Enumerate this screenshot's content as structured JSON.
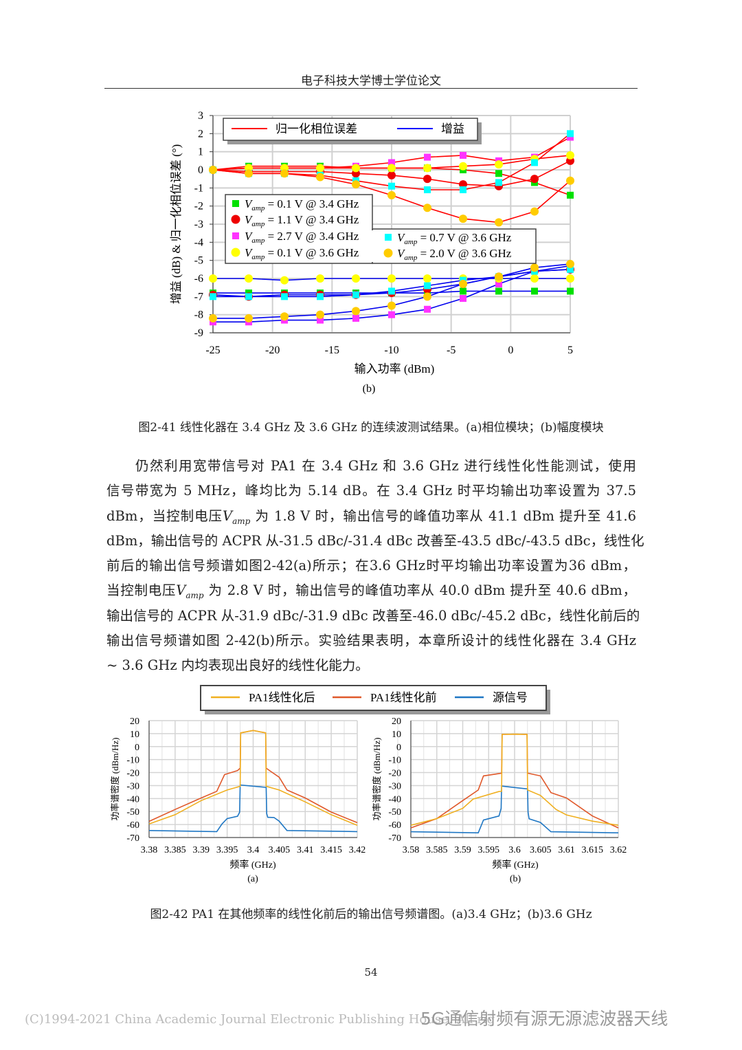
{
  "header": {
    "title": "电子科技大学博士学位论文"
  },
  "figure_2_41": {
    "sublabel": "(b)",
    "caption": "图2-41  线性化器在 3.4 GHz 及 3.6 GHz 的连续波测试结果。(a)相位模块；(b)幅度模块"
  },
  "paragraph": {
    "lines": [
      [
        {
          "t": "仍然利用宽带信号对 PA1 在 3.4 GHz 和 3.6 GHz 进行线性化性能测试，使用"
        }
      ],
      [
        {
          "t": "信号带宽为 5 MHz，峰均比为 5.14 dB。在 3.4 GHz 时平均输出功率设置为 37.5"
        }
      ],
      [
        {
          "t": "dBm，当控制电压"
        },
        {
          "t": "V",
          "i": true
        },
        {
          "t": "amp",
          "sub": true
        },
        {
          "t": " 为 1.8 V 时，输出信号的峰值功率从 41.1 dBm 提升至 41.6"
        }
      ],
      [
        {
          "t": "dBm，输出信号的 ACPR 从-31.5 dBc/-31.4 dBc 改善至-43.5 dBc/-43.5 dBc，线性化"
        }
      ],
      [
        {
          "t": "前后的输出信号频谱如图2-42(a)所示；在3.6 GHz时平均输出功率设置为36 dBm，"
        }
      ],
      [
        {
          "t": "当控制电压"
        },
        {
          "t": "V",
          "i": true
        },
        {
          "t": "amp",
          "sub": true
        },
        {
          "t": " 为 2.8 V 时，输出信号的峰值功率从 40.0 dBm 提升至 40.6 dBm，"
        }
      ],
      [
        {
          "t": "输出信号的 ACPR 从-31.9 dBc/-31.9 dBc 改善至-46.0 dBc/-45.2 dBc，线性化前后的"
        }
      ],
      [
        {
          "t": "输出信号频谱如图 2-42(b)所示。实验结果表明，本章所设计的线性化器在 3.4 GHz"
        }
      ],
      [
        {
          "t": "~ 3.6 GHz 内均表现出良好的线性化能力。"
        }
      ]
    ]
  },
  "figure_2_42": {
    "caption": "图2-42  PA1 在其他频率的线性化前后的输出信号频谱图。(a)3.4 GHz；(b)3.6 GHz"
  },
  "page_number": "54",
  "footer": {
    "copyright": "(C)1994-2021 China Academic Journal Electronic Publishing House. All rig",
    "watermark": "5G通信射频有源无源滤波器天线"
  },
  "chart_data": [
    {
      "type": "line",
      "title": "",
      "xlabel": "输入功率 (dBm)",
      "ylabel": "增益 (dB) & 归一化相位误差 (°)",
      "xlim": [
        -25,
        5
      ],
      "ylim": [
        -9,
        3
      ],
      "xticks": [
        "-25",
        "-20",
        "-15",
        "-10",
        "-5",
        "0",
        "5"
      ],
      "yticks": [
        "3",
        "2",
        "1",
        "0",
        "-1",
        "-2",
        "-3",
        "-4",
        "-5",
        "-6",
        "-7",
        "-8",
        "-9"
      ],
      "line_legend": [
        {
          "name": "归一化相位误差",
          "color": "#ff0000"
        },
        {
          "name": "增益",
          "color": "#0000ff"
        }
      ],
      "x": [
        -25,
        -22,
        -19,
        -16,
        -13,
        -10,
        -7,
        -4,
        -1,
        2,
        5
      ],
      "series": [
        {
          "name": "V_amp = 0.1 V @ 3.4 GHz",
          "label_v": "V",
          "label_sub": "amp",
          "label_rest": " = 0.1 V @ 3.4 GHz",
          "marker": "square",
          "color": "#00e000",
          "phase": [
            0,
            0.2,
            0.2,
            0.2,
            0.1,
            0.1,
            0.1,
            0,
            -0.2,
            -0.7,
            -1.4
          ],
          "gain": [
            -6.8,
            -6.8,
            -6.8,
            -6.8,
            -6.8,
            -6.8,
            -6.8,
            -6.7,
            -6.7,
            -6.7,
            -6.7
          ]
        },
        {
          "name": "V_amp = 1.1 V @ 3.4 GHz",
          "label_v": "V",
          "label_sub": "amp",
          "label_rest": " = 1.1 V @ 3.4 GHz",
          "marker": "circle",
          "color": "#ee0000",
          "phase": [
            0,
            -0.1,
            -0.1,
            -0.1,
            -0.2,
            -0.3,
            -0.5,
            -0.8,
            -0.9,
            -0.5,
            0.5
          ],
          "gain": [
            -6.9,
            -7,
            -6.9,
            -6.9,
            -6.9,
            -6.8,
            -6.6,
            -6.3,
            -5.9,
            -5.6,
            -5.5
          ]
        },
        {
          "name": "V_amp = 2.7 V @ 3.4 GHz",
          "label_v": "V",
          "label_sub": "amp",
          "label_rest": " = 2.7 V @ 3.4 GHz",
          "marker": "square",
          "color": "#ff33ff",
          "phase": [
            0,
            0.1,
            0.1,
            0.1,
            0.2,
            0.4,
            0.7,
            0.8,
            0.5,
            0.7,
            1.8
          ],
          "gain": [
            -8.4,
            -8.4,
            -8.3,
            -8.3,
            -8.2,
            -8,
            -7.7,
            -7.1,
            -6.3,
            -5.6,
            -5.3
          ]
        },
        {
          "name": "V_amp = 0.1 V @ 3.6 GHz",
          "label_v": "V",
          "label_sub": "amp",
          "label_rest": " = 0.1 V @ 3.6 GHz",
          "marker": "circle",
          "color": "#ffff00",
          "phase": [
            0,
            0.1,
            0.1,
            0.1,
            0.1,
            0.1,
            0.1,
            0.2,
            0.3,
            0.6,
            0.8
          ],
          "gain": [
            -6,
            -6,
            -6.1,
            -6,
            -6,
            -6,
            -6,
            -6,
            -6,
            -6,
            -6
          ]
        },
        {
          "name": "V_amp = 0.7 V @ 3.6 GHz",
          "label_v": "V",
          "label_sub": "amp",
          "label_rest": " = 0.7 V @ 3.6 GHz",
          "marker": "square",
          "color": "#00ffff",
          "phase": [
            0,
            -0.2,
            -0.2,
            -0.3,
            -0.6,
            -0.9,
            -1.1,
            -1.1,
            -0.7,
            0.4,
            2.0
          ],
          "gain": [
            -7,
            -7,
            -7,
            -7,
            -6.9,
            -6.7,
            -6.4,
            -6.1,
            -5.9,
            -5.6,
            -5.5
          ]
        },
        {
          "name": "V_amp = 2.0 V @ 3.6 GHz",
          "label_v": "V",
          "label_sub": "amp",
          "label_rest": " = 2.0 V @ 3.6 GHz",
          "marker": "circle",
          "color": "#ffcc00",
          "phase": [
            0,
            -0.2,
            -0.2,
            -0.4,
            -0.8,
            -1.4,
            -2.1,
            -2.7,
            -2.9,
            -2.3,
            -0.6
          ],
          "gain": [
            -8.2,
            -8.2,
            -8.1,
            -8,
            -7.8,
            -7.5,
            -7,
            -6.3,
            -5.9,
            -5.4,
            -5.2
          ]
        }
      ]
    },
    {
      "type": "line",
      "sublabel": "(a)",
      "xlabel": "频率 (GHz)",
      "ylabel": "功率谱密度 (dBm/Hz)",
      "xlim": [
        3.38,
        3.42
      ],
      "ylim": [
        -70,
        20
      ],
      "xticks": [
        "3.38",
        "3.385",
        "3.39",
        "3.395",
        "3.4",
        "3.405",
        "3.41",
        "3.415",
        "3.42"
      ],
      "yticks": [
        "20",
        "10",
        "0",
        "-10",
        "-20",
        "-30",
        "-40",
        "-50",
        "-60",
        "-70"
      ],
      "series": [
        {
          "name": "源信号",
          "color": "#1f77c4",
          "x": [
            3.38,
            3.393,
            3.394,
            3.395,
            3.397,
            3.3974,
            3.3975,
            3.4025,
            3.4026,
            3.4028,
            3.404,
            3.405,
            3.4065,
            3.42
          ],
          "y": [
            -65,
            -65,
            -60,
            -55,
            -54,
            -50,
            -30,
            -31,
            -52,
            -54,
            -55,
            -57,
            -65,
            -65
          ]
        },
        {
          "name": "PA1线性化前",
          "color": "#e0582a",
          "x": [
            3.38,
            3.385,
            3.39,
            3.393,
            3.3945,
            3.397,
            3.3975,
            3.3976,
            3.4,
            3.4024,
            3.4025,
            3.4035,
            3.405,
            3.4065,
            3.41,
            3.415,
            3.42
          ],
          "y": [
            -58,
            -48,
            -40,
            -34,
            -22,
            -18,
            -17,
            11,
            12,
            11,
            -17,
            -19,
            -24,
            -33,
            -40,
            -50,
            -59
          ]
        },
        {
          "name": "PA1线性化后",
          "color": "#f0b020",
          "x": [
            3.38,
            3.385,
            3.39,
            3.395,
            3.3975,
            3.3976,
            3.4,
            3.4024,
            3.4025,
            3.405,
            3.41,
            3.415,
            3.42
          ],
          "y": [
            -60,
            -52,
            -42,
            -33,
            -31,
            11,
            12,
            11,
            -31,
            -33,
            -43,
            -52,
            -61
          ]
        }
      ]
    },
    {
      "type": "line",
      "sublabel": "(b)",
      "xlabel": "频率 (GHz)",
      "ylabel": "功率谱密度 (dBm/Hz)",
      "xlim": [
        3.58,
        3.62
      ],
      "ylim": [
        -70,
        20
      ],
      "xticks": [
        "3.58",
        "3.585",
        "3.59",
        "3.595",
        "3.6",
        "3.605",
        "3.61",
        "3.615",
        "3.62"
      ],
      "yticks": [
        "20",
        "10",
        "0",
        "-10",
        "-20",
        "-30",
        "-40",
        "-50",
        "-60",
        "-70"
      ],
      "series": [
        {
          "name": "源信号",
          "color": "#1f77c4",
          "x": [
            3.58,
            3.593,
            3.594,
            3.597,
            3.5974,
            3.5975,
            3.6025,
            3.6026,
            3.6028,
            3.605,
            3.607,
            3.62
          ],
          "y": [
            -66,
            -66,
            -57,
            -53,
            -48,
            -30,
            -33,
            -50,
            -56,
            -58,
            -66,
            -66
          ]
        },
        {
          "name": "PA1线性化前",
          "color": "#e0582a",
          "x": [
            3.58,
            3.585,
            3.59,
            3.593,
            3.594,
            3.5975,
            3.5976,
            3.6,
            3.6024,
            3.6025,
            3.605,
            3.607,
            3.61,
            3.615,
            3.62
          ],
          "y": [
            -63,
            -55,
            -42,
            -33,
            -23,
            -20,
            9,
            10,
            9,
            -20,
            -23,
            -35,
            -40,
            -53,
            -63
          ]
        },
        {
          "name": "PA1线性化后",
          "color": "#f0b020",
          "x": [
            3.58,
            3.585,
            3.59,
            3.592,
            3.597,
            3.5975,
            3.5976,
            3.6,
            3.6024,
            3.6025,
            3.605,
            3.608,
            3.61,
            3.615,
            3.62
          ],
          "y": [
            -61,
            -55,
            -48,
            -40,
            -35,
            -34,
            9,
            10,
            9,
            -33,
            -38,
            -48,
            -53,
            -57,
            -61
          ]
        }
      ]
    }
  ],
  "spectrum_legend": [
    {
      "name": "PA1线性化后",
      "color": "#f0b020"
    },
    {
      "name": "PA1线性化前",
      "color": "#e0582a"
    },
    {
      "name": "源信号",
      "color": "#1f77c4"
    }
  ]
}
